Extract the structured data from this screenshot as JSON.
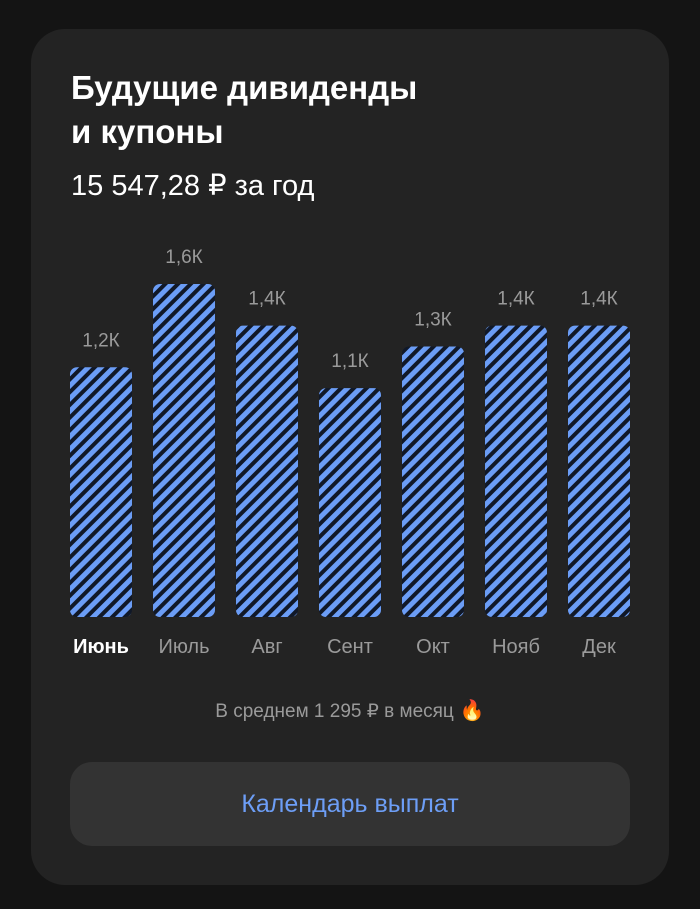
{
  "card": {
    "title_line1": "Будущие дивиденды",
    "title_line2": "и купоны",
    "total": "15 547,28 ₽ за год",
    "average": "В среднем 1 295 ₽ в месяц",
    "average_icon": "fire-icon",
    "button_label": "Календарь выплат"
  },
  "colors": {
    "background": "#141414",
    "card": "#232323",
    "bar_fill": "#6b9df6",
    "bar_stripe": "#101828",
    "accent": "#6d9ef6",
    "button_bg": "#333333"
  },
  "chart_data": {
    "type": "bar",
    "categories": [
      "Июнь",
      "Июль",
      "Авг",
      "Сент",
      "Окт",
      "Нояб",
      "Дек"
    ],
    "values": [
      1.2,
      1.6,
      1.4,
      1.1,
      1.3,
      1.4,
      1.4
    ],
    "value_labels": [
      "1,2К",
      "1,6К",
      "1,4К",
      "1,1К",
      "1,3К",
      "1,4К",
      "1,4К"
    ],
    "unit": "тыс. ₽",
    "selected_category": "Июнь",
    "ylim": [
      0,
      1.6
    ],
    "grid": false,
    "legend": "none"
  }
}
